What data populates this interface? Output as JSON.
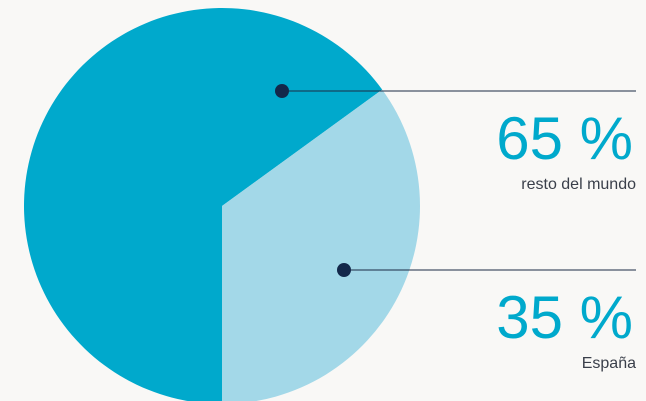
{
  "chart_data": {
    "type": "pie",
    "categories": [
      "resto del mundo",
      "España"
    ],
    "values": [
      65,
      35
    ],
    "value_labels": [
      "65 %",
      "35 %"
    ],
    "colors": [
      "#00a9cc",
      "#a3d8e8"
    ]
  }
}
